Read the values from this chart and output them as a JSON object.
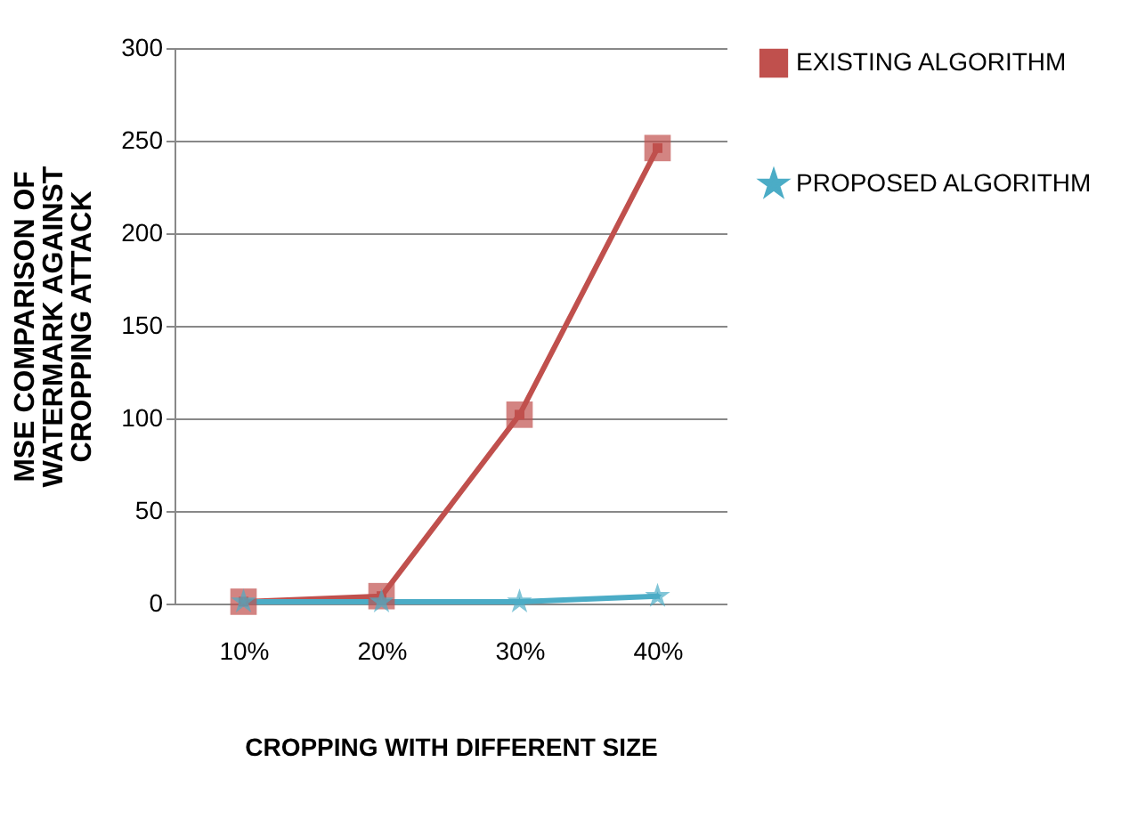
{
  "chart_data": {
    "type": "line",
    "xlabel": "CROPPING WITH DIFFERENT SIZE",
    "ylabel": "MSE COMPARISON OF WATERMARK AGAINST CROPPING ATTACK",
    "categories": [
      "10%",
      "20%",
      "30%",
      "40%"
    ],
    "series": [
      {
        "name": "EXISTING ALGORITHM",
        "color": "#c0504d",
        "marker": "square",
        "values": [
          1,
          4,
          102,
          246
        ]
      },
      {
        "name": "PROPOSED ALGORITHM",
        "color": "#4bacc6",
        "marker": "star",
        "values": [
          1,
          1,
          1,
          4
        ]
      }
    ],
    "ylim": [
      0,
      300
    ],
    "yticks": [
      0,
      50,
      100,
      150,
      200,
      250,
      300
    ],
    "grid": "y",
    "legend": "right",
    "line_style": "solid"
  }
}
